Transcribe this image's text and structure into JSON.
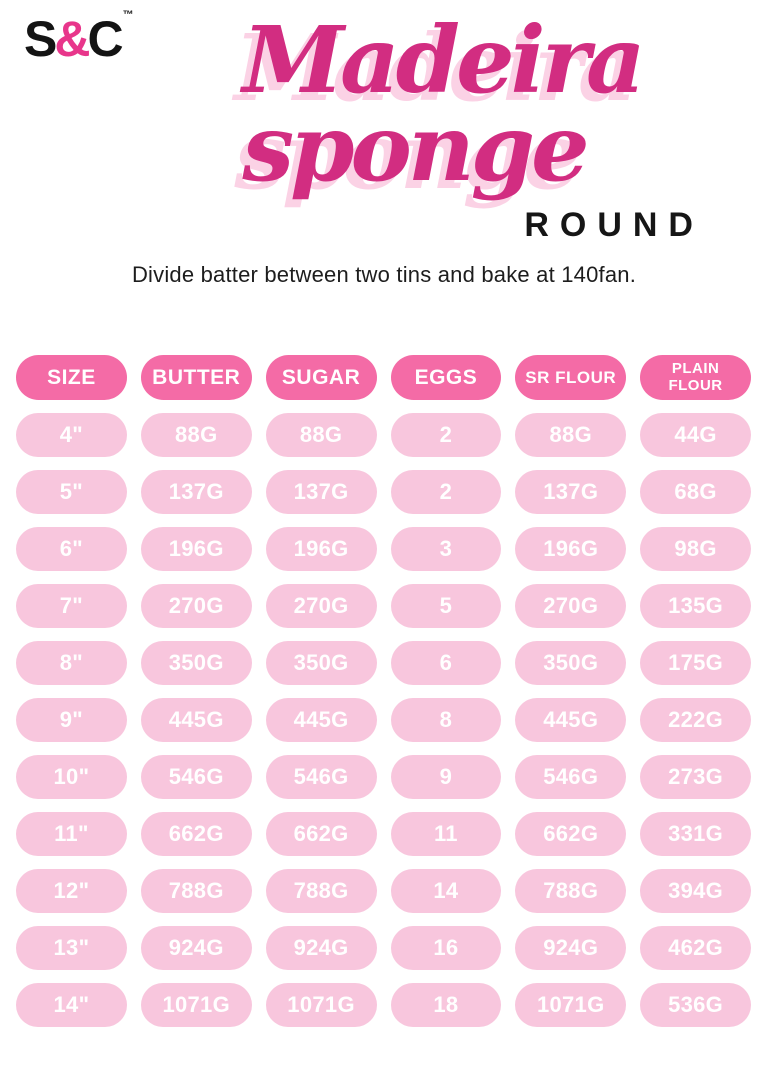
{
  "logo": {
    "left": "S",
    "amp": "&",
    "right": "C",
    "tm": "™"
  },
  "title": {
    "line1": "Madeira",
    "line2": "sponge",
    "shape_label": "ROUND"
  },
  "subtitle": "Divide batter between two tins and bake at 140fan.",
  "colors": {
    "header_pill": "#f46ba6",
    "data_pill": "#f8c6dd",
    "title_pink": "#d22d81",
    "title_shadow": "#fbd2e5",
    "accent_amp": "#e8368b"
  },
  "chart_data": {
    "type": "table",
    "title": "Madeira sponge ROUND",
    "columns": [
      "SIZE",
      "BUTTER",
      "SUGAR",
      "EGGS",
      "SR FLOUR",
      "PLAIN FLOUR"
    ],
    "rows": [
      [
        "4\"",
        "88G",
        "88G",
        "2",
        "88G",
        "44G"
      ],
      [
        "5\"",
        "137G",
        "137G",
        "2",
        "137G",
        "68G"
      ],
      [
        "6\"",
        "196G",
        "196G",
        "3",
        "196G",
        "98G"
      ],
      [
        "7\"",
        "270G",
        "270G",
        "5",
        "270G",
        "135G"
      ],
      [
        "8\"",
        "350G",
        "350G",
        "6",
        "350G",
        "175G"
      ],
      [
        "9\"",
        "445G",
        "445G",
        "8",
        "445G",
        "222G"
      ],
      [
        "10\"",
        "546G",
        "546G",
        "9",
        "546G",
        "273G"
      ],
      [
        "11\"",
        "662G",
        "662G",
        "11",
        "662G",
        "331G"
      ],
      [
        "12\"",
        "788G",
        "788G",
        "14",
        "788G",
        "394G"
      ],
      [
        "13\"",
        "924G",
        "924G",
        "16",
        "924G",
        "462G"
      ],
      [
        "14\"",
        "1071G",
        "1071G",
        "18",
        "1071G",
        "536G"
      ]
    ]
  }
}
